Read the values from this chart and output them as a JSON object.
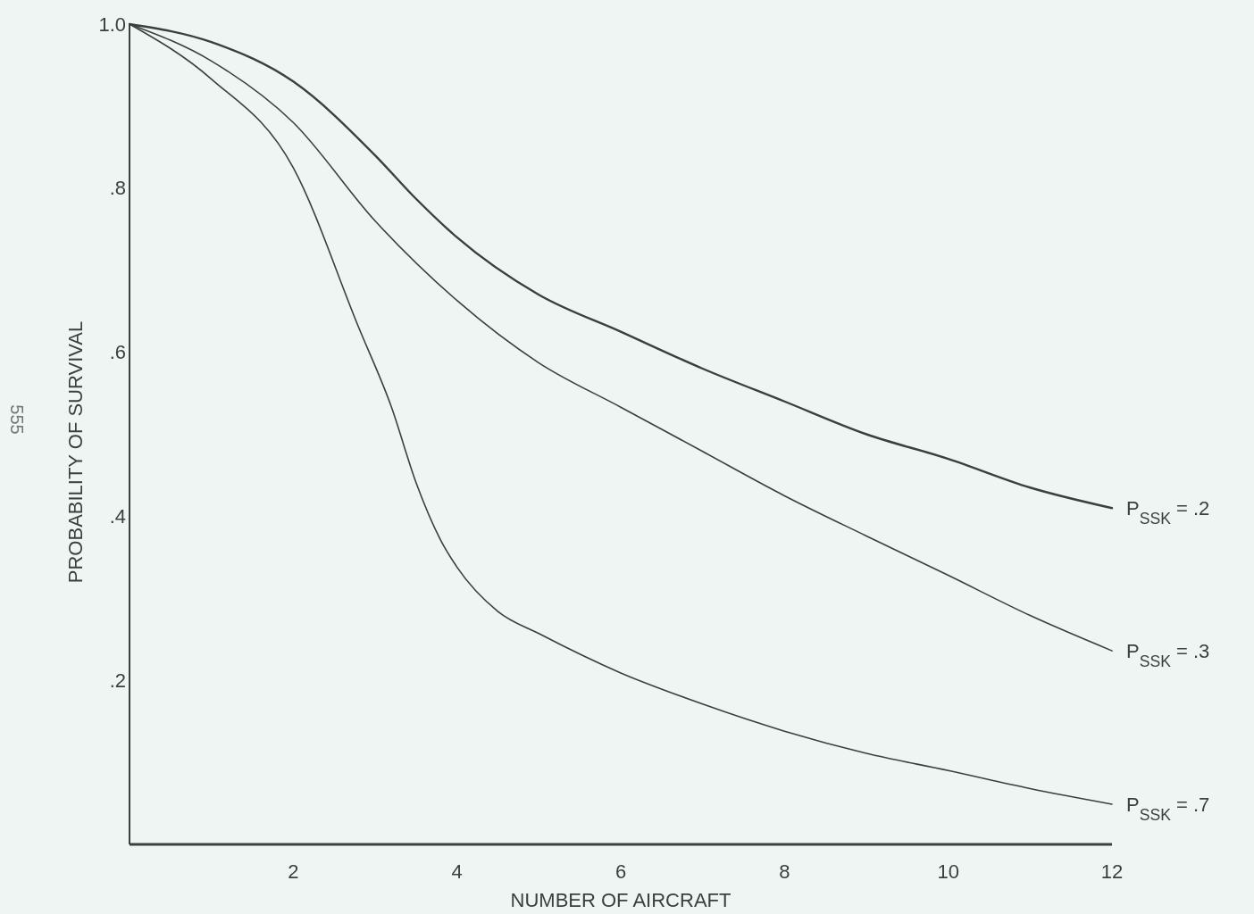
{
  "chart_data": {
    "type": "line",
    "xlabel": "NUMBER OF AIRCRAFT",
    "ylabel": "PROBABILITY OF SURVIVAL",
    "annotations": [
      "555"
    ],
    "xlim": [
      0,
      12
    ],
    "ylim": [
      0,
      1
    ],
    "xticks": [
      2,
      4,
      6,
      8,
      10,
      12
    ],
    "yticks": [
      {
        "value": 0.2,
        "label": ".2"
      },
      {
        "value": 0.4,
        "label": ".4"
      },
      {
        "value": 0.6,
        "label": ".6"
      },
      {
        "value": 0.8,
        "label": ".8"
      },
      {
        "value": 1,
        "label": "1.0"
      }
    ],
    "grid": false,
    "marker": "none",
    "line_style": "solid",
    "series": [
      {
        "name": "P$_{SSK}$ = .2",
        "color": "#3a403b",
        "x": [
          0,
          1,
          2,
          3,
          3.5,
          4,
          5,
          6,
          7,
          8,
          9,
          10,
          11,
          12
        ],
        "values": [
          1,
          0.978,
          0.93,
          0.84,
          0.787,
          0.74,
          0.67,
          0.625,
          0.58,
          0.54,
          0.5,
          0.47,
          0.435,
          0.41
        ]
      },
      {
        "name": "P$_{SSK}$ = .3",
        "color": "#3a403b",
        "x": [
          0,
          1,
          2,
          3,
          4,
          5,
          6,
          7,
          8,
          9,
          10,
          11,
          12
        ],
        "values": [
          1,
          0.955,
          0.88,
          0.76,
          0.663,
          0.587,
          0.533,
          0.479,
          0.425,
          0.376,
          0.328,
          0.279,
          0.236
        ]
      },
      {
        "name": "P$_{SSK}$ = .7",
        "color": "#3a403b",
        "x": [
          0,
          1,
          2,
          2.8,
          3.2,
          3.5,
          3.8,
          4,
          4.5,
          5,
          6,
          7,
          8,
          9,
          10,
          11,
          12
        ],
        "values": [
          1,
          0.933,
          0.825,
          0.63,
          0.533,
          0.441,
          0.371,
          0.338,
          0.284,
          0.257,
          0.209,
          0.171,
          0.138,
          0.111,
          0.09,
          0.068,
          0.049
        ]
      }
    ]
  }
}
